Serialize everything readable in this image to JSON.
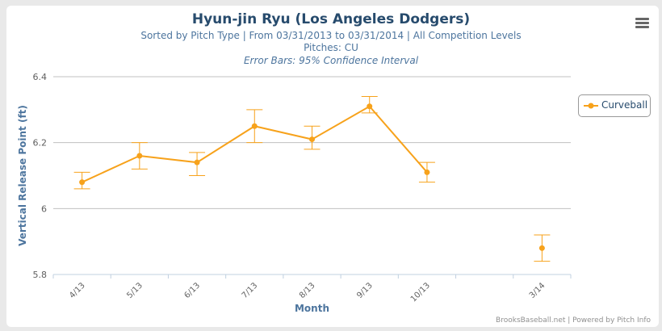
{
  "header": {
    "title": "Hyun-jin Ryu (Los Angeles Dodgers)",
    "subtitle": "Sorted by Pitch Type | From 03/31/2013 to 03/31/2014 | All Competition Levels",
    "pitches": "Pitches: CU",
    "error_note": "Error Bars: 95% Confidence Interval"
  },
  "menu_icon": "hamburger-menu-icon",
  "credit": "BrooksBaseball.net | Powered by Pitch Info",
  "colors": {
    "series": "#f7a21b",
    "grid": "#c0c0c0",
    "title": "#274b6d",
    "axis_title": "#4d759e"
  },
  "chart_data": {
    "type": "line",
    "title": "Hyun-jin Ryu (Los Angeles Dodgers)",
    "xlabel": "Month",
    "ylabel": "Vertical Release Point (ft)",
    "ylim": [
      5.8,
      6.4
    ],
    "yticks": [
      5.8,
      6,
      6.2,
      6.4
    ],
    "ytick_labels": [
      "5.8",
      "6",
      "6.2",
      "6.4"
    ],
    "grid": true,
    "legend_position": "right",
    "categories": [
      "4/13",
      "5/13",
      "6/13",
      "7/13",
      "8/13",
      "9/13",
      "10/13",
      "",
      "3/14"
    ],
    "series": [
      {
        "name": "Curveball",
        "values": [
          6.08,
          6.16,
          6.14,
          6.25,
          6.21,
          6.31,
          6.11,
          null,
          5.88
        ],
        "error_low": [
          6.06,
          6.12,
          6.1,
          6.2,
          6.18,
          6.29,
          6.08,
          null,
          5.84
        ],
        "error_high": [
          6.11,
          6.2,
          6.17,
          6.3,
          6.25,
          6.34,
          6.14,
          null,
          5.92
        ]
      }
    ]
  }
}
